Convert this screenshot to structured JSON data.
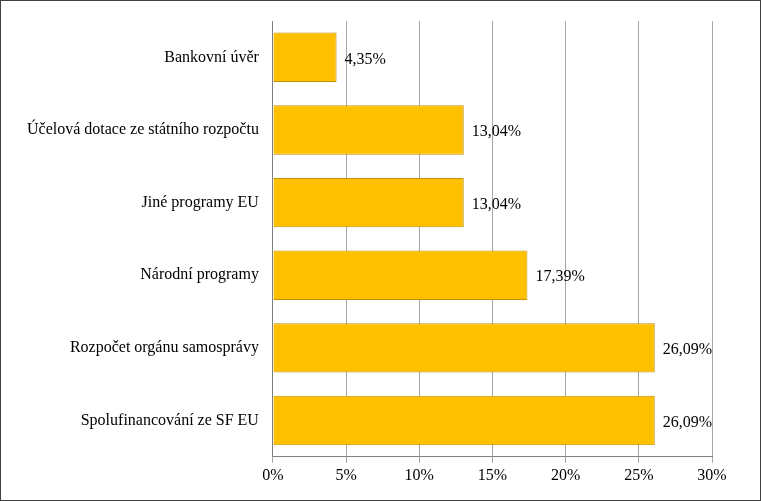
{
  "chart_data": {
    "type": "bar",
    "orientation": "horizontal",
    "categories": [
      "Bankovní úvěr",
      "Účelová dotace ze státního rozpočtu",
      "Jiné programy EU",
      "Národní programy",
      "Rozpočet orgánu samosprávy",
      "Spolufinancování ze SF EU"
    ],
    "values": [
      4.35,
      13.04,
      13.04,
      17.39,
      26.09,
      26.09
    ],
    "value_labels": [
      "4,35%",
      "13,04%",
      "13,04%",
      "17,39%",
      "26,09%",
      "26,09%"
    ],
    "data_labels": true,
    "color": "#ffc000",
    "xlim": [
      0,
      30
    ],
    "xticks": [
      {
        "value": 0,
        "label": "0%"
      },
      {
        "value": 5,
        "label": "5%"
      },
      {
        "value": 10,
        "label": "10%"
      },
      {
        "value": 15,
        "label": "15%"
      },
      {
        "value": 20,
        "label": "20%"
      },
      {
        "value": 25,
        "label": "25%"
      },
      {
        "value": 30,
        "label": "30%"
      }
    ],
    "grid": true
  }
}
